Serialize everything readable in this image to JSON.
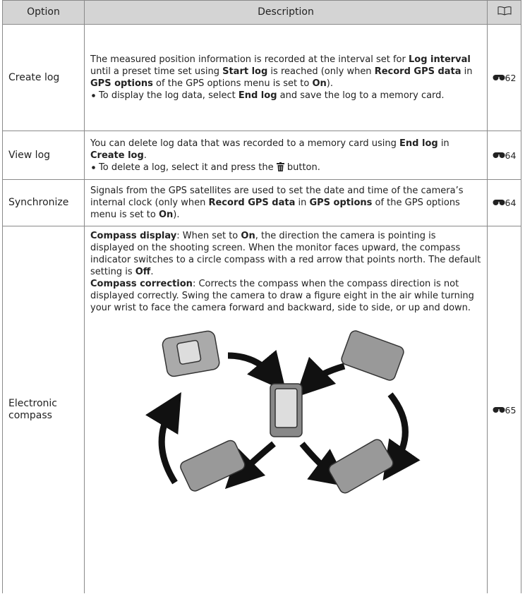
{
  "table": {
    "header": [
      "Option",
      "Description"
    ],
    "rows": [
      {
        "option": "Create log",
        "text": [
          [
            "The measured position information is recorded at the interval set for ",
            "Log interval",
            " until a preset time set using ",
            "Start log",
            " is reached (only when ",
            "Record GPS data",
            " in ",
            "GPS options",
            " of the GPS options menu is set to ",
            "On",
            ")."
          ],
          [
            "To display the log data, select ",
            "End log",
            " and save the log to a memory card."
          ]
        ],
        "page": "62"
      },
      {
        "option": "View log",
        "text": [
          [
            "You can delete log data that was recorded to a memory card using ",
            "End log",
            " in ",
            "Create log",
            "."
          ],
          [
            "To delete a log, select it and press the ",
            " button."
          ]
        ],
        "page": "64"
      },
      {
        "option": "Synchronize",
        "text": [
          [
            "Signals from the GPS satellites are used to set the date and time of the camera’s internal clock (only when ",
            "Record GPS data",
            " in ",
            "GPS options",
            " of the GPS options menu is set to ",
            "On",
            ")."
          ]
        ],
        "page": "64"
      },
      {
        "option": "Electronic compass",
        "text": [
          [
            "Compass display",
            ": When set to ",
            "On",
            ", the direction the camera is pointing is displayed on the shooting screen. When the monitor faces upward, the compass indicator switches to a circle compass with a red arrow that points north. The default setting is ",
            "Off",
            "."
          ],
          [
            "Compass correction",
            ": Corrects the compass when the compass direction is not displayed correctly. Swing the camera to draw a figure eight in the air while turning your wrist to face the camera forward and backward, side to side, or up and down."
          ]
        ],
        "page": "65"
      }
    ]
  }
}
